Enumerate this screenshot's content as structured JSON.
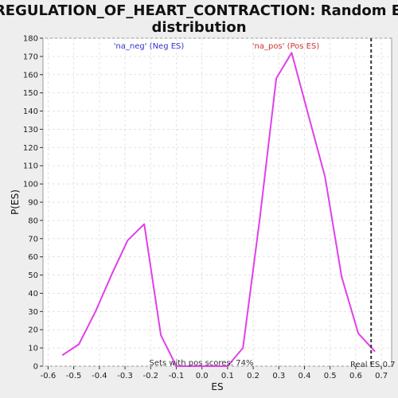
{
  "chart_data": {
    "type": "line",
    "title_line1": "REGULATION_OF_HEART_CONTRACTION: Random ES",
    "title_line2": "distribution",
    "xlabel": "ES",
    "ylabel": "P(ES)",
    "xlim": [
      -0.62,
      0.74
    ],
    "ylim": [
      0,
      180
    ],
    "xticks": [
      "-0.6",
      "-0.5",
      "-0.4",
      "-0.3",
      "-0.2",
      "-0.1",
      "0.0",
      "0.1",
      "0.2",
      "0.3",
      "0.4",
      "0.5",
      "0.6",
      "0.7"
    ],
    "xtick_values": [
      -0.6,
      -0.5,
      -0.4,
      -0.3,
      -0.2,
      -0.1,
      0.0,
      0.1,
      0.2,
      0.3,
      0.4,
      0.5,
      0.6,
      0.7
    ],
    "yticks": [
      0,
      10,
      20,
      30,
      40,
      50,
      60,
      70,
      80,
      90,
      100,
      110,
      120,
      130,
      140,
      150,
      160,
      170,
      180
    ],
    "grid": true,
    "series": [
      {
        "color": "#e040e8",
        "x": [
          -0.545,
          -0.48,
          -0.415,
          -0.35,
          -0.29,
          -0.225,
          -0.16,
          -0.1,
          0.1,
          0.16,
          0.225,
          0.29,
          0.35,
          0.415,
          0.48,
          0.545,
          0.61,
          0.675
        ],
        "y": [
          6,
          12,
          30,
          51,
          69,
          78,
          17,
          0,
          0,
          10,
          80,
          158,
          172,
          138,
          104,
          49,
          18,
          8
        ]
      }
    ],
    "real_es": 0.66,
    "annotations": {
      "neg_label": "'na_neg' (Neg ES)",
      "neg_color": "#3333cc",
      "pos_label": "'na_pos' (Pos ES)",
      "pos_color": "#cc3333",
      "pos_scores": "Sets with pos scores: 74%",
      "real_es_label": "Real ES 0.7"
    }
  }
}
